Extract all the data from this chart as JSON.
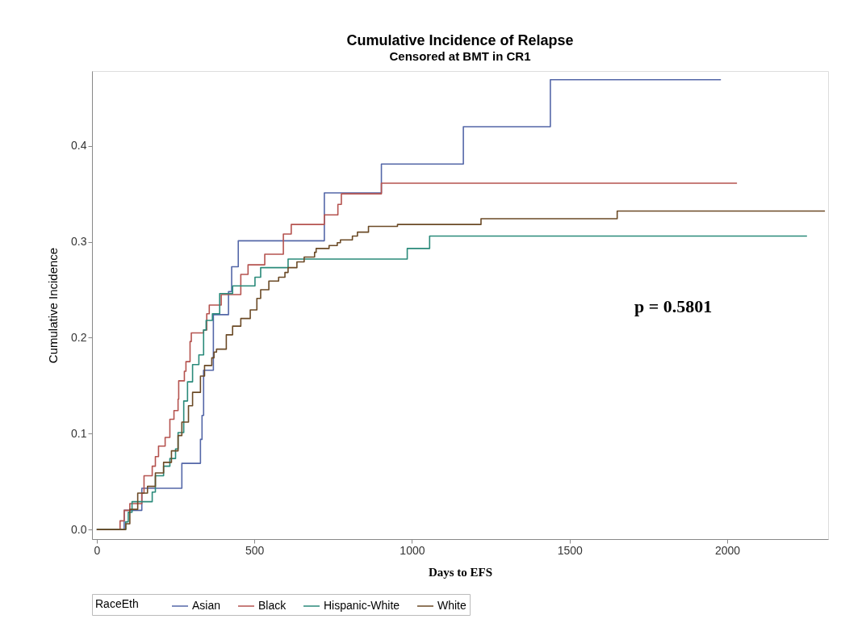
{
  "chart_data": {
    "type": "step",
    "title": "Cumulative Incidence of Relapse",
    "subtitle": "Censored at BMT in CR1",
    "xlabel": "Days to EFS",
    "ylabel": "Cumulative Incidence",
    "legend_title": "RaceEth",
    "legend": "bottom",
    "grid": false,
    "line_style": "solid",
    "marker": "none",
    "xlim": [
      -15,
      2320
    ],
    "xticks": [
      0,
      500,
      1000,
      1500,
      2000
    ],
    "ylim": [
      -0.01,
      0.478
    ],
    "yticks": [
      {
        "value": 0,
        "label": "0.0"
      },
      0.1,
      0.2,
      0.3,
      0.4
    ],
    "annotations": [
      "p = 0.5801"
    ],
    "series": [
      {
        "name": "Asian",
        "color": "#5467a8",
        "x": [
          0,
          87,
          143,
          270,
          329,
          334,
          339,
          370,
          418,
          428,
          449,
          722,
          903,
          1163,
          1439,
          1980
        ],
        "values": [
          0,
          0.02,
          0.043,
          0.069,
          0.094,
          0.119,
          0.166,
          0.224,
          0.248,
          0.274,
          0.301,
          0.351,
          0.381,
          0.42,
          0.469,
          0.469
        ]
      },
      {
        "name": "Black",
        "color": "#b5534f",
        "x": [
          0,
          74,
          87,
          105,
          143,
          150,
          176,
          186,
          196,
          217,
          232,
          245,
          258,
          260,
          278,
          283,
          296,
          300,
          339,
          349,
          357,
          395,
          457,
          480,
          533,
          592,
          617,
          722,
          765,
          776,
          903,
          2031
        ],
        "values": [
          0,
          0.009,
          0.02,
          0.027,
          0.038,
          0.056,
          0.066,
          0.076,
          0.087,
          0.096,
          0.115,
          0.124,
          0.136,
          0.155,
          0.165,
          0.175,
          0.196,
          0.205,
          0.208,
          0.225,
          0.234,
          0.245,
          0.266,
          0.276,
          0.287,
          0.308,
          0.318,
          0.328,
          0.339,
          0.35,
          0.361,
          0.361
        ]
      },
      {
        "name": "Hispanic-White",
        "color": "#2a8a7a",
        "x": [
          0,
          92,
          100,
          112,
          176,
          186,
          212,
          232,
          250,
          258,
          276,
          288,
          304,
          324,
          339,
          347,
          367,
          390,
          431,
          502,
          520,
          607,
          985,
          1056,
          2253
        ],
        "values": [
          0,
          0.008,
          0.018,
          0.029,
          0.039,
          0.056,
          0.066,
          0.074,
          0.084,
          0.101,
          0.134,
          0.154,
          0.172,
          0.182,
          0.208,
          0.218,
          0.225,
          0.246,
          0.254,
          0.263,
          0.273,
          0.282,
          0.293,
          0.306,
          0.306
        ]
      },
      {
        "name": "White",
        "color": "#6b4a26",
        "x": [
          0,
          92,
          105,
          130,
          161,
          186,
          212,
          237,
          258,
          270,
          291,
          304,
          329,
          342,
          365,
          372,
          380,
          411,
          431,
          457,
          487,
          508,
          520,
          546,
          577,
          597,
          607,
          635,
          658,
          691,
          696,
          737,
          763,
          773,
          811,
          827,
          862,
          954,
          1219,
          1651,
          2310
        ],
        "values": [
          0,
          0.006,
          0.021,
          0.038,
          0.045,
          0.059,
          0.07,
          0.082,
          0.098,
          0.112,
          0.129,
          0.143,
          0.16,
          0.171,
          0.179,
          0.185,
          0.188,
          0.203,
          0.212,
          0.22,
          0.229,
          0.241,
          0.25,
          0.259,
          0.263,
          0.268,
          0.273,
          0.279,
          0.284,
          0.289,
          0.293,
          0.296,
          0.299,
          0.302,
          0.306,
          0.31,
          0.316,
          0.318,
          0.324,
          0.332,
          0.332
        ]
      }
    ]
  }
}
